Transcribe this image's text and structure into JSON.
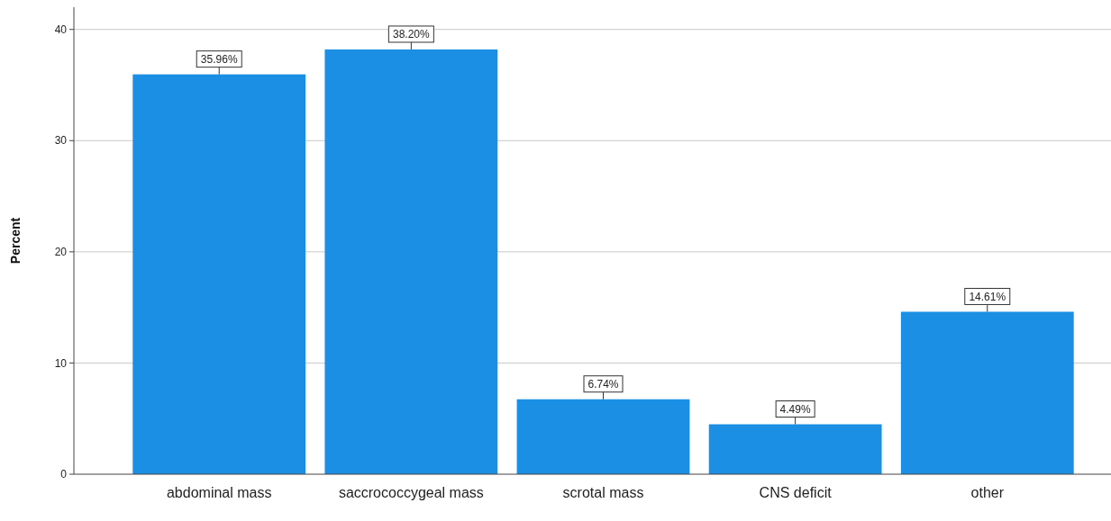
{
  "chart_data": {
    "type": "bar",
    "ylabel": "Percent",
    "categories": [
      "abdominal mass",
      "saccrococcygeal mass",
      "scrotal mass",
      "CNS deficit",
      "other"
    ],
    "values": [
      35.96,
      38.2,
      6.74,
      4.49,
      14.61
    ],
    "value_labels": [
      "35.96%",
      "38.20%",
      "6.74%",
      "4.49%",
      "14.61%"
    ],
    "color": "#1a8fe3",
    "ylim": [
      0,
      42
    ],
    "yticks": [
      0,
      10,
      20,
      30,
      40
    ],
    "grid": "y"
  }
}
